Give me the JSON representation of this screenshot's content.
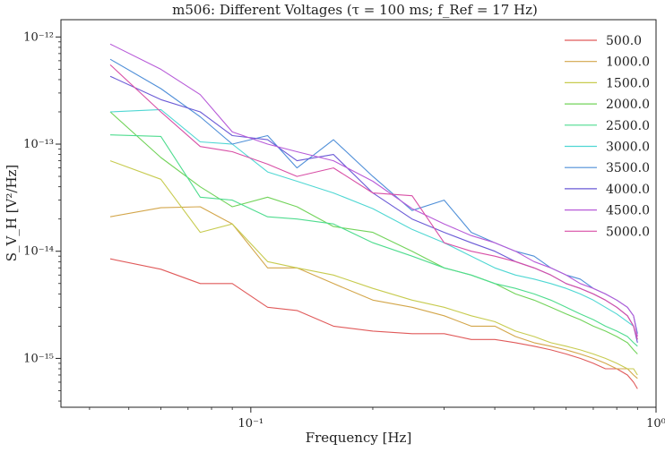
{
  "chart_data": {
    "type": "line",
    "title": "m506: Different Voltages (τ = 100 ms; f_Ref = 17 Hz)",
    "xlabel": "Frequency [Hz]",
    "ylabel": "S_V_H [V²/Hz]",
    "xscale": "log",
    "yscale": "log",
    "xlim": [
      0.034,
      1.0
    ],
    "ylim": [
      3.5e-16,
      1.45e-12
    ],
    "xticks": [
      {
        "value": 0.1,
        "label": "10⁻¹"
      },
      {
        "value": 1.0,
        "label": "10⁰"
      }
    ],
    "yticks": [
      {
        "value": 1e-15,
        "label": "10⁻¹⁵"
      },
      {
        "value": 1e-14,
        "label": "10⁻¹⁴"
      },
      {
        "value": 1e-13,
        "label": "10⁻¹³"
      },
      {
        "value": 1e-12,
        "label": "10⁻¹²"
      }
    ],
    "grid": false,
    "legend_position": "top-right",
    "colors": {
      "500.0": "#e05a5a",
      "1000.0": "#d3a64a",
      "1500.0": "#c7cb4f",
      "2000.0": "#72d35a",
      "2500.0": "#4fdc8f",
      "3000.0": "#4fd7d3",
      "3500.0": "#4f8fd8",
      "4000.0": "#6a5ad6",
      "4500.0": "#b75ad8",
      "5000.0": "#d84fa6"
    },
    "series": [
      {
        "name": "500.0",
        "x": [
          0.045,
          0.06,
          0.075,
          0.09,
          0.11,
          0.13,
          0.16,
          0.2,
          0.25,
          0.3,
          0.35,
          0.4,
          0.45,
          0.5,
          0.55,
          0.6,
          0.65,
          0.7,
          0.75,
          0.8,
          0.85,
          0.88,
          0.9
        ],
        "y": [
          8.5e-15,
          6.8e-15,
          5e-15,
          5e-15,
          3e-15,
          2.8e-15,
          2e-15,
          1.8e-15,
          1.7e-15,
          1.7e-15,
          1.5e-15,
          1.5e-15,
          1.4e-15,
          1.3e-15,
          1.2e-15,
          1.1e-15,
          1e-15,
          9e-16,
          8e-16,
          8e-16,
          7e-16,
          6e-16,
          5.2e-16
        ]
      },
      {
        "name": "1000.0",
        "x": [
          0.045,
          0.06,
          0.075,
          0.09,
          0.11,
          0.13,
          0.16,
          0.2,
          0.25,
          0.3,
          0.35,
          0.4,
          0.45,
          0.5,
          0.55,
          0.6,
          0.65,
          0.7,
          0.75,
          0.8,
          0.85,
          0.88,
          0.9
        ],
        "y": [
          2.1e-14,
          2.55e-14,
          2.6e-14,
          1.8e-14,
          7e-15,
          7e-15,
          5e-15,
          3.5e-15,
          3e-15,
          2.5e-15,
          2e-15,
          2e-15,
          1.6e-15,
          1.4e-15,
          1.3e-15,
          1.2e-15,
          1.1e-15,
          1e-15,
          9e-16,
          8e-16,
          8e-16,
          7e-16,
          6.5e-16
        ]
      },
      {
        "name": "1500.0",
        "x": [
          0.045,
          0.06,
          0.075,
          0.09,
          0.11,
          0.13,
          0.16,
          0.2,
          0.25,
          0.3,
          0.35,
          0.4,
          0.45,
          0.5,
          0.55,
          0.6,
          0.65,
          0.7,
          0.75,
          0.8,
          0.85,
          0.88,
          0.9
        ],
        "y": [
          7e-14,
          4.7e-14,
          1.5e-14,
          1.8e-14,
          8e-15,
          7e-15,
          6e-15,
          4.5e-15,
          3.5e-15,
          3e-15,
          2.5e-15,
          2.2e-15,
          1.8e-15,
          1.6e-15,
          1.4e-15,
          1.3e-15,
          1.2e-15,
          1.1e-15,
          1e-15,
          9e-16,
          8e-16,
          8e-16,
          7e-16
        ]
      },
      {
        "name": "2000.0",
        "x": [
          0.045,
          0.06,
          0.075,
          0.09,
          0.11,
          0.13,
          0.16,
          0.2,
          0.25,
          0.3,
          0.35,
          0.4,
          0.45,
          0.5,
          0.55,
          0.6,
          0.65,
          0.7,
          0.75,
          0.8,
          0.85,
          0.88,
          0.9
        ],
        "y": [
          2e-13,
          7.5e-14,
          4e-14,
          2.6e-14,
          3.2e-14,
          2.6e-14,
          1.7e-14,
          1.5e-14,
          1e-14,
          7e-15,
          6e-15,
          5e-15,
          4e-15,
          3.5e-15,
          3e-15,
          2.6e-15,
          2.3e-15,
          2e-15,
          1.8e-15,
          1.6e-15,
          1.4e-15,
          1.2e-15,
          1.1e-15
        ]
      },
      {
        "name": "2500.0",
        "x": [
          0.045,
          0.06,
          0.075,
          0.09,
          0.11,
          0.13,
          0.16,
          0.2,
          0.25,
          0.3,
          0.35,
          0.4,
          0.45,
          0.5,
          0.55,
          0.6,
          0.65,
          0.7,
          0.75,
          0.8,
          0.85,
          0.88,
          0.9
        ],
        "y": [
          1.22e-13,
          1.18e-13,
          3.2e-14,
          3e-14,
          2.1e-14,
          2e-14,
          1.8e-14,
          1.2e-14,
          9e-15,
          7e-15,
          6e-15,
          5e-15,
          4.5e-15,
          4e-15,
          3.5e-15,
          3e-15,
          2.6e-15,
          2.3e-15,
          2e-15,
          1.8e-15,
          1.6e-15,
          1.4e-15,
          1.3e-15
        ]
      },
      {
        "name": "3000.0",
        "x": [
          0.045,
          0.06,
          0.075,
          0.09,
          0.11,
          0.13,
          0.16,
          0.2,
          0.25,
          0.3,
          0.35,
          0.4,
          0.45,
          0.5,
          0.55,
          0.6,
          0.65,
          0.7,
          0.75,
          0.8,
          0.85,
          0.88,
          0.9
        ],
        "y": [
          2e-13,
          2.1e-13,
          1.05e-13,
          1e-13,
          5.5e-14,
          4.5e-14,
          3.5e-14,
          2.5e-14,
          1.6e-14,
          1.2e-14,
          9e-15,
          7e-15,
          6e-15,
          5.5e-15,
          5e-15,
          4.5e-15,
          4e-15,
          3.5e-15,
          3e-15,
          2.6e-15,
          2.2e-15,
          2e-15,
          1.5e-15
        ]
      },
      {
        "name": "3500.0",
        "x": [
          0.045,
          0.06,
          0.075,
          0.09,
          0.11,
          0.13,
          0.16,
          0.2,
          0.25,
          0.3,
          0.35,
          0.4,
          0.45,
          0.5,
          0.55,
          0.6,
          0.65,
          0.7,
          0.75,
          0.8,
          0.85,
          0.88,
          0.9
        ],
        "y": [
          6.2e-13,
          3.3e-13,
          1.8e-13,
          1e-13,
          1.2e-13,
          6e-14,
          1.1e-13,
          5e-14,
          2.4e-14,
          3e-14,
          1.5e-14,
          1.2e-14,
          1e-14,
          9e-15,
          7e-15,
          6e-15,
          5.5e-15,
          4.5e-15,
          4e-15,
          3.5e-15,
          3e-15,
          2.5e-15,
          1.7e-15
        ]
      },
      {
        "name": "4000.0",
        "x": [
          0.045,
          0.06,
          0.075,
          0.09,
          0.11,
          0.13,
          0.16,
          0.2,
          0.25,
          0.3,
          0.35,
          0.4,
          0.45,
          0.5,
          0.55,
          0.6,
          0.65,
          0.7,
          0.75,
          0.8,
          0.85,
          0.88,
          0.9
        ],
        "y": [
          4.3e-13,
          2.6e-13,
          2e-13,
          1.2e-13,
          1.1e-13,
          7e-14,
          8e-14,
          3.5e-14,
          2e-14,
          1.5e-14,
          1.2e-14,
          1e-14,
          8e-15,
          7e-15,
          6e-15,
          5e-15,
          4.5e-15,
          4e-15,
          3.5e-15,
          3e-15,
          2.5e-15,
          2e-15,
          1.4e-15
        ]
      },
      {
        "name": "4500.0",
        "x": [
          0.045,
          0.06,
          0.075,
          0.09,
          0.11,
          0.13,
          0.16,
          0.2,
          0.25,
          0.3,
          0.35,
          0.4,
          0.45,
          0.5,
          0.55,
          0.6,
          0.65,
          0.7,
          0.75,
          0.8,
          0.85,
          0.88,
          0.9
        ],
        "y": [
          8.6e-13,
          5e-13,
          2.9e-13,
          1.3e-13,
          1e-13,
          8.5e-14,
          7e-14,
          4.5e-14,
          2.5e-14,
          1.8e-14,
          1.4e-14,
          1.2e-14,
          1e-14,
          8e-15,
          7e-15,
          6e-15,
          5e-15,
          4.5e-15,
          4e-15,
          3.5e-15,
          3e-15,
          2.5e-15,
          1.6e-15
        ]
      },
      {
        "name": "5000.0",
        "x": [
          0.045,
          0.06,
          0.075,
          0.09,
          0.11,
          0.13,
          0.16,
          0.2,
          0.25,
          0.3,
          0.35,
          0.4,
          0.45,
          0.5,
          0.55,
          0.6,
          0.65,
          0.7,
          0.75,
          0.8,
          0.85,
          0.88,
          0.9
        ],
        "y": [
          5.5e-13,
          2e-13,
          9.5e-14,
          8.5e-14,
          6.5e-14,
          5e-14,
          6e-14,
          3.5e-14,
          3.3e-14,
          1.2e-14,
          1e-14,
          9e-15,
          8e-15,
          7e-15,
          6e-15,
          5e-15,
          4.5e-15,
          4e-15,
          3.5e-15,
          3e-15,
          2.5e-15,
          2e-15,
          1.5e-15
        ]
      }
    ]
  }
}
